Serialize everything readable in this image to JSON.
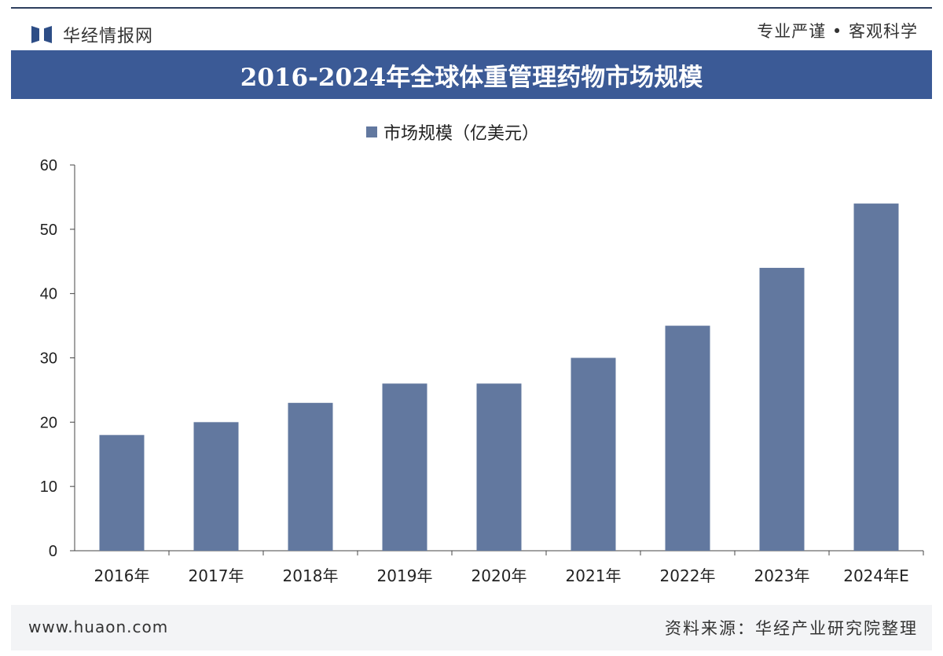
{
  "header": {
    "logo_text": "华经情报网",
    "slogan": "专业严谨 • 客观科学"
  },
  "footer": {
    "url": "www.huaon.com",
    "source": "资料来源：华经产业研究院整理"
  },
  "colors": {
    "title_bar": "#3b5a96",
    "bar": "#62789f"
  },
  "chart_data": {
    "type": "bar",
    "title": "2016-2024年全球体重管理药物市场规模",
    "categories": [
      "2016年",
      "2017年",
      "2018年",
      "2019年",
      "2020年",
      "2021年",
      "2022年",
      "2023年",
      "2024年E"
    ],
    "series": [
      {
        "name": "市场规模（亿美元）",
        "values": [
          18,
          20,
          23,
          26,
          26,
          30,
          35,
          44,
          54
        ]
      }
    ],
    "xlabel": "",
    "ylabel": "",
    "ylim": [
      0,
      60
    ],
    "yticks": [
      0,
      10,
      20,
      30,
      40,
      50,
      60
    ],
    "grid": false,
    "legend": "top-center"
  }
}
